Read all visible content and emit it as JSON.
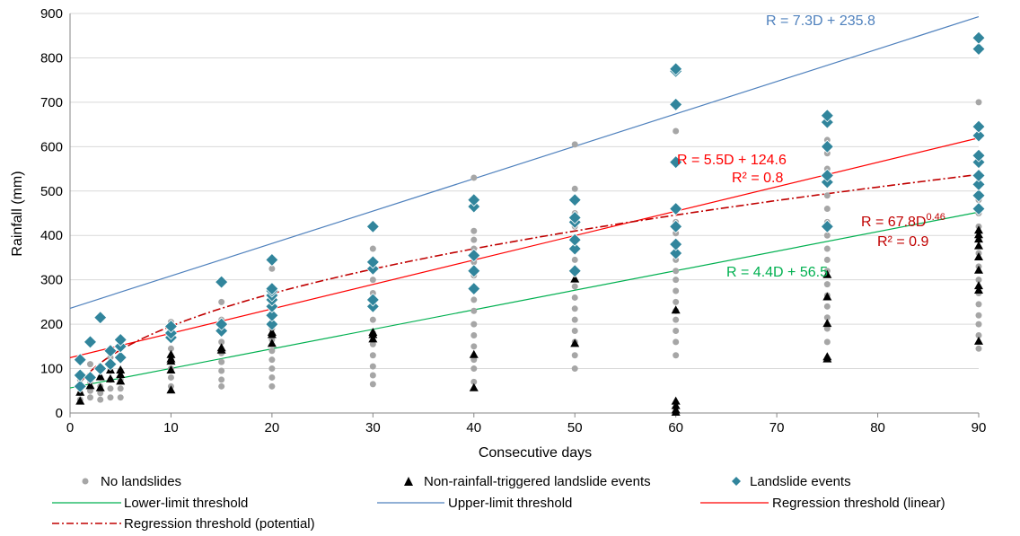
{
  "chart_data": {
    "type": "scatter",
    "xlabel": "Consecutive days",
    "ylabel": "Rainfall (mm)",
    "xlim": [
      0,
      90
    ],
    "ylim": [
      0,
      900
    ],
    "x_ticks": [
      0,
      10,
      20,
      30,
      40,
      50,
      60,
      70,
      80,
      90
    ],
    "y_ticks": [
      0,
      100,
      200,
      300,
      400,
      500,
      600,
      700,
      800,
      900
    ],
    "grid": "horizontal",
    "legend_position": "bottom",
    "colors": {
      "no_landslides": "#a6a6a6",
      "non_rainfall": "#000000",
      "landslide": "#31859c",
      "lower": "#00b050",
      "upper": "#4f81bd",
      "reg_linear": "#ff0000",
      "reg_potential": "#c00000",
      "grid": "#d9d9d9"
    },
    "series": [
      {
        "key": "no_landslides",
        "name": "No landslides",
        "marker": "circle",
        "points": [
          [
            1,
            30
          ],
          [
            1,
            45
          ],
          [
            1,
            60
          ],
          [
            1,
            75
          ],
          [
            1,
            90
          ],
          [
            2,
            35
          ],
          [
            2,
            50
          ],
          [
            2,
            70
          ],
          [
            2,
            85
          ],
          [
            2,
            110
          ],
          [
            3,
            30
          ],
          [
            3,
            45
          ],
          [
            3,
            60
          ],
          [
            3,
            80
          ],
          [
            3,
            100
          ],
          [
            4,
            35
          ],
          [
            4,
            55
          ],
          [
            4,
            75
          ],
          [
            4,
            95
          ],
          [
            4,
            125
          ],
          [
            5,
            35
          ],
          [
            5,
            55
          ],
          [
            5,
            75
          ],
          [
            5,
            95
          ],
          [
            5,
            125
          ],
          [
            5,
            160
          ],
          [
            10,
            60
          ],
          [
            10,
            80
          ],
          [
            10,
            100
          ],
          [
            10,
            120
          ],
          [
            10,
            145
          ],
          [
            10,
            170
          ],
          [
            10,
            190
          ],
          [
            10,
            205
          ],
          [
            15,
            60
          ],
          [
            15,
            75
          ],
          [
            15,
            95
          ],
          [
            15,
            115
          ],
          [
            15,
            135
          ],
          [
            15,
            160
          ],
          [
            15,
            185
          ],
          [
            15,
            210
          ],
          [
            15,
            250
          ],
          [
            20,
            60
          ],
          [
            20,
            80
          ],
          [
            20,
            100
          ],
          [
            20,
            120
          ],
          [
            20,
            140
          ],
          [
            20,
            165
          ],
          [
            20,
            190
          ],
          [
            20,
            215
          ],
          [
            20,
            245
          ],
          [
            20,
            285
          ],
          [
            20,
            325
          ],
          [
            30,
            65
          ],
          [
            30,
            85
          ],
          [
            30,
            105
          ],
          [
            30,
            130
          ],
          [
            30,
            155
          ],
          [
            30,
            180
          ],
          [
            30,
            210
          ],
          [
            30,
            245
          ],
          [
            30,
            270
          ],
          [
            30,
            300
          ],
          [
            30,
            335
          ],
          [
            30,
            370
          ],
          [
            40,
            70
          ],
          [
            40,
            100
          ],
          [
            40,
            120
          ],
          [
            40,
            150
          ],
          [
            40,
            175
          ],
          [
            40,
            200
          ],
          [
            40,
            230
          ],
          [
            40,
            255
          ],
          [
            40,
            280
          ],
          [
            40,
            310
          ],
          [
            40,
            340
          ],
          [
            40,
            370
          ],
          [
            40,
            390
          ],
          [
            40,
            410
          ],
          [
            40,
            530
          ],
          [
            50,
            100
          ],
          [
            50,
            130
          ],
          [
            50,
            160
          ],
          [
            50,
            185
          ],
          [
            50,
            210
          ],
          [
            50,
            235
          ],
          [
            50,
            260
          ],
          [
            50,
            285
          ],
          [
            50,
            315
          ],
          [
            50,
            345
          ],
          [
            50,
            370
          ],
          [
            50,
            395
          ],
          [
            50,
            420
          ],
          [
            50,
            450
          ],
          [
            50,
            480
          ],
          [
            50,
            505
          ],
          [
            50,
            605
          ],
          [
            60,
            130
          ],
          [
            60,
            160
          ],
          [
            60,
            185
          ],
          [
            60,
            210
          ],
          [
            60,
            230
          ],
          [
            60,
            250
          ],
          [
            60,
            275
          ],
          [
            60,
            300
          ],
          [
            60,
            320
          ],
          [
            60,
            345
          ],
          [
            60,
            365
          ],
          [
            60,
            385
          ],
          [
            60,
            405
          ],
          [
            60,
            430
          ],
          [
            60,
            460
          ],
          [
            60,
            635
          ],
          [
            75,
            160
          ],
          [
            75,
            190
          ],
          [
            75,
            215
          ],
          [
            75,
            240
          ],
          [
            75,
            265
          ],
          [
            75,
            290
          ],
          [
            75,
            320
          ],
          [
            75,
            345
          ],
          [
            75,
            370
          ],
          [
            75,
            400
          ],
          [
            75,
            430
          ],
          [
            75,
            460
          ],
          [
            75,
            490
          ],
          [
            75,
            520
          ],
          [
            75,
            550
          ],
          [
            75,
            585
          ],
          [
            75,
            615
          ],
          [
            90,
            145
          ],
          [
            90,
            175
          ],
          [
            90,
            200
          ],
          [
            90,
            220
          ],
          [
            90,
            245
          ],
          [
            90,
            270
          ],
          [
            90,
            300
          ],
          [
            90,
            330
          ],
          [
            90,
            360
          ],
          [
            90,
            390
          ],
          [
            90,
            420
          ],
          [
            90,
            450
          ],
          [
            90,
            480
          ],
          [
            90,
            520
          ],
          [
            90,
            560
          ],
          [
            90,
            700
          ]
        ]
      },
      {
        "key": "non_rainfall",
        "name": "Non-rainfall-triggered landslide events",
        "marker": "triangle",
        "points": [
          [
            1,
            25
          ],
          [
            1,
            45
          ],
          [
            2,
            60
          ],
          [
            3,
            55
          ],
          [
            3,
            80
          ],
          [
            4,
            75
          ],
          [
            4,
            95
          ],
          [
            5,
            70
          ],
          [
            5,
            85
          ],
          [
            5,
            95
          ],
          [
            10,
            50
          ],
          [
            10,
            95
          ],
          [
            10,
            115
          ],
          [
            10,
            120
          ],
          [
            10,
            130
          ],
          [
            15,
            140
          ],
          [
            15,
            145
          ],
          [
            20,
            155
          ],
          [
            20,
            175
          ],
          [
            20,
            180
          ],
          [
            30,
            165
          ],
          [
            30,
            175
          ],
          [
            30,
            180
          ],
          [
            40,
            55
          ],
          [
            40,
            130
          ],
          [
            50,
            155
          ],
          [
            50,
            300
          ],
          [
            60,
            0
          ],
          [
            60,
            5
          ],
          [
            60,
            15
          ],
          [
            60,
            25
          ],
          [
            60,
            230
          ],
          [
            75,
            120
          ],
          [
            75,
            125
          ],
          [
            75,
            200
          ],
          [
            75,
            260
          ],
          [
            75,
            310
          ],
          [
            90,
            160
          ],
          [
            90,
            275
          ],
          [
            90,
            285
          ],
          [
            90,
            320
          ],
          [
            90,
            350
          ],
          [
            90,
            375
          ],
          [
            90,
            390
          ],
          [
            90,
            400
          ],
          [
            90,
            410
          ]
        ]
      },
      {
        "key": "landslide",
        "name": "Landslide events",
        "marker": "diamond",
        "points": [
          [
            1,
            60
          ],
          [
            1,
            85
          ],
          [
            1,
            120
          ],
          [
            2,
            80
          ],
          [
            2,
            160
          ],
          [
            3,
            100
          ],
          [
            3,
            215
          ],
          [
            4,
            110
          ],
          [
            4,
            140
          ],
          [
            5,
            125
          ],
          [
            5,
            150
          ],
          [
            5,
            165
          ],
          [
            10,
            170
          ],
          [
            10,
            180
          ],
          [
            10,
            195
          ],
          [
            15,
            185
          ],
          [
            15,
            200
          ],
          [
            15,
            295
          ],
          [
            20,
            200
          ],
          [
            20,
            220
          ],
          [
            20,
            240
          ],
          [
            20,
            255
          ],
          [
            20,
            265
          ],
          [
            20,
            275
          ],
          [
            20,
            280
          ],
          [
            20,
            345
          ],
          [
            30,
            240
          ],
          [
            30,
            255
          ],
          [
            30,
            325
          ],
          [
            30,
            340
          ],
          [
            30,
            420
          ],
          [
            40,
            280
          ],
          [
            40,
            320
          ],
          [
            40,
            355
          ],
          [
            40,
            465
          ],
          [
            40,
            480
          ],
          [
            50,
            320
          ],
          [
            50,
            370
          ],
          [
            50,
            390
          ],
          [
            50,
            430
          ],
          [
            50,
            440
          ],
          [
            50,
            480
          ],
          [
            60,
            360
          ],
          [
            60,
            380
          ],
          [
            60,
            420
          ],
          [
            60,
            460
          ],
          [
            60,
            565
          ],
          [
            60,
            695
          ],
          [
            60,
            770
          ],
          [
            60,
            775
          ],
          [
            75,
            420
          ],
          [
            75,
            520
          ],
          [
            75,
            535
          ],
          [
            75,
            600
          ],
          [
            75,
            655
          ],
          [
            75,
            670
          ],
          [
            90,
            460
          ],
          [
            90,
            490
          ],
          [
            90,
            515
          ],
          [
            90,
            535
          ],
          [
            90,
            565
          ],
          [
            90,
            580
          ],
          [
            90,
            625
          ],
          [
            90,
            645
          ],
          [
            90,
            820
          ],
          [
            90,
            845
          ]
        ]
      },
      {
        "key": "lower",
        "name": "Lower-limit threshold",
        "type": "linear",
        "slope": 4.4,
        "intercept": 56.5
      },
      {
        "key": "upper",
        "name": "Upper-limit threshold",
        "type": "linear",
        "slope": 7.3,
        "intercept": 235.8
      },
      {
        "key": "reg_linear",
        "name": "Regression threshold (linear)",
        "type": "linear",
        "slope": 5.5,
        "intercept": 124.6
      },
      {
        "key": "reg_potential",
        "name": "Regression threshold (potential)",
        "type": "power",
        "a": 67.8,
        "b": 0.46
      }
    ],
    "annotations": {
      "upper_eq": "R = 7.3D + 235.8",
      "linear_eq": "R = 5.5D + 124.6",
      "linear_r2": "R² = 0.8",
      "power_eq_base": "R = 67.8D",
      "power_eq_exp": "0.46",
      "power_r2": "R² = 0.9",
      "lower_eq": "R = 4.4D + 56.5"
    }
  }
}
